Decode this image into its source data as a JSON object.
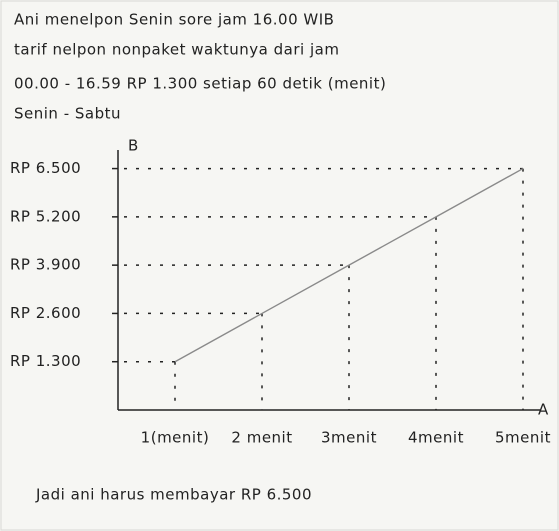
{
  "chart_data": {
    "type": "line",
    "text_lines": [
      "Ani menelpon Senin sore jam 16.00 WIB",
      "tarif nelpon nonpaket waktunya dari jam",
      "00.00 - 16.59 RP 1.300 setiap 60 detik (menit)",
      "Senin - Sabtu"
    ],
    "y_label": "B",
    "x_label": "A",
    "categories": [
      "1(menit)",
      "2 menit",
      "3menit",
      "4menit",
      "5menit"
    ],
    "values": [
      1300,
      2600,
      3900,
      5200,
      6500
    ],
    "color": "#8a8a8a",
    "ylim": [
      0,
      7000
    ],
    "yticks": [
      {
        "value": 1300,
        "label": "RP 1.300"
      },
      {
        "value": 2600,
        "label": "RP 2.600"
      },
      {
        "value": 3900,
        "label": "RP 3.900"
      },
      {
        "value": 5200,
        "label": "RP 5.200"
      },
      {
        "value": 6500,
        "label": "RP 6.500"
      }
    ],
    "conclusion": "Jadi ani harus membayar RP 6.500"
  }
}
